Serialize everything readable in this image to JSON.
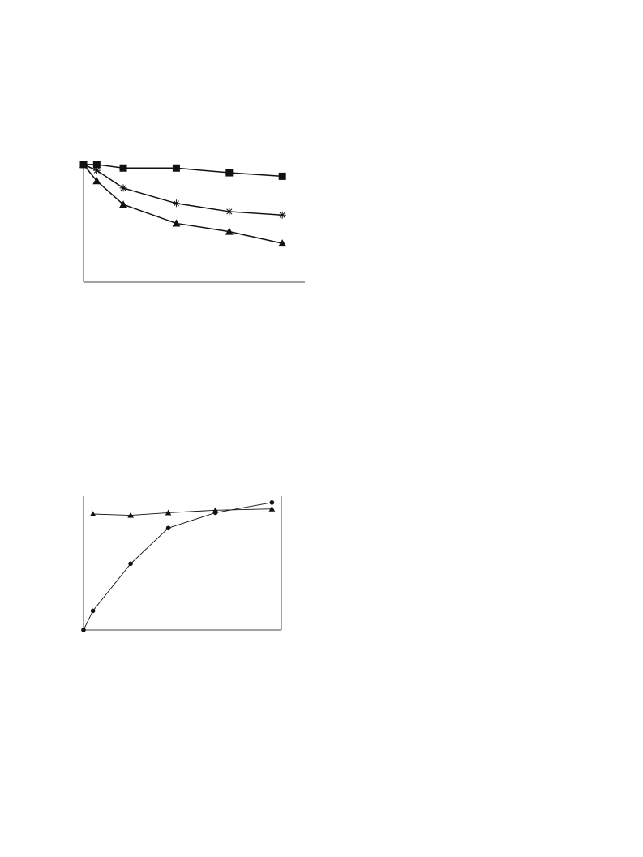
{
  "chart_data": [
    {
      "type": "line",
      "xlim": [
        0,
        16.7
      ],
      "ylim": [
        0,
        102
      ],
      "frame": [
        "left",
        "bottom"
      ],
      "line_width": 1.5,
      "series": [
        {
          "color": "#111111",
          "marker": "square",
          "x": [
            0,
            1,
            3,
            7,
            11,
            15
          ],
          "values": [
            100,
            100,
            97,
            97,
            93,
            90
          ]
        },
        {
          "color": "#111111",
          "marker": "star",
          "x": [
            0,
            1,
            3,
            7,
            11,
            15
          ],
          "values": [
            100,
            95,
            80,
            67,
            60,
            57
          ]
        },
        {
          "color": "#111111",
          "marker": "triangle",
          "x": [
            0,
            1,
            3,
            7,
            11,
            15
          ],
          "values": [
            100,
            86,
            66,
            50,
            43,
            33
          ]
        }
      ]
    },
    {
      "type": "line",
      "xlim": [
        0,
        21
      ],
      "ylim": [
        0,
        105
      ],
      "frame": [
        "left",
        "bottom",
        "right"
      ],
      "line_width": 0.9,
      "series": [
        {
          "color": "#111111",
          "marker": "circle",
          "x": [
            0,
            1,
            5,
            9,
            14,
            20
          ],
          "values": [
            0,
            15,
            52,
            80,
            92,
            100
          ]
        },
        {
          "color": "#111111",
          "marker": "triangle",
          "x": [
            1,
            5,
            9,
            14,
            20
          ],
          "values": [
            91,
            90,
            92,
            94,
            95
          ]
        }
      ]
    }
  ]
}
